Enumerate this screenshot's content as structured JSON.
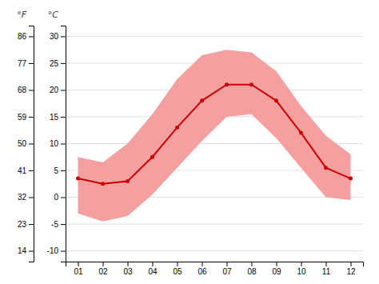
{
  "chart_data": {
    "type": "line",
    "x": [
      1,
      2,
      3,
      4,
      5,
      6,
      7,
      8,
      9,
      10,
      11,
      12
    ],
    "xlim": [
      0.5,
      12.5
    ],
    "xticks": [
      {
        "value": 1,
        "label": "01"
      },
      {
        "value": 2,
        "label": "02"
      },
      {
        "value": 3,
        "label": "03"
      },
      {
        "value": 4,
        "label": "04"
      },
      {
        "value": 5,
        "label": "05"
      },
      {
        "value": 6,
        "label": "06"
      },
      {
        "value": 7,
        "label": "07"
      },
      {
        "value": 8,
        "label": "08"
      },
      {
        "value": 9,
        "label": "09"
      },
      {
        "value": 10,
        "label": "10"
      },
      {
        "value": 11,
        "label": "11"
      },
      {
        "value": 12,
        "label": "12"
      }
    ],
    "ylabel": "°C",
    "ylim": [
      -12,
      32
    ],
    "yticks": [
      -10,
      -5,
      0,
      5,
      10,
      15,
      20,
      25,
      30
    ],
    "y2label": "°F",
    "y2lim": [
      10.4,
      89.6
    ],
    "y2ticks": [
      14,
      23,
      32,
      41,
      50,
      59,
      68,
      77,
      86
    ],
    "grid": true,
    "series": [
      {
        "type": "area",
        "color": "#f5a0a0",
        "values": [
          7.5,
          6.5,
          10.0,
          15.5,
          22.0,
          26.5,
          27.5,
          27.0,
          23.5,
          17.0,
          11.5,
          8.0
        ],
        "low": [
          -3.0,
          -4.5,
          -3.5,
          0.5,
          5.5,
          10.5,
          15.0,
          15.5,
          11.0,
          5.5,
          0.0,
          -0.5
        ]
      },
      {
        "type": "line",
        "color": "#cc0000",
        "marker": "circle",
        "values": [
          3.5,
          2.5,
          3.0,
          7.5,
          13.0,
          18.0,
          21.0,
          21.0,
          18.0,
          12.0,
          5.5,
          3.5
        ]
      }
    ]
  }
}
